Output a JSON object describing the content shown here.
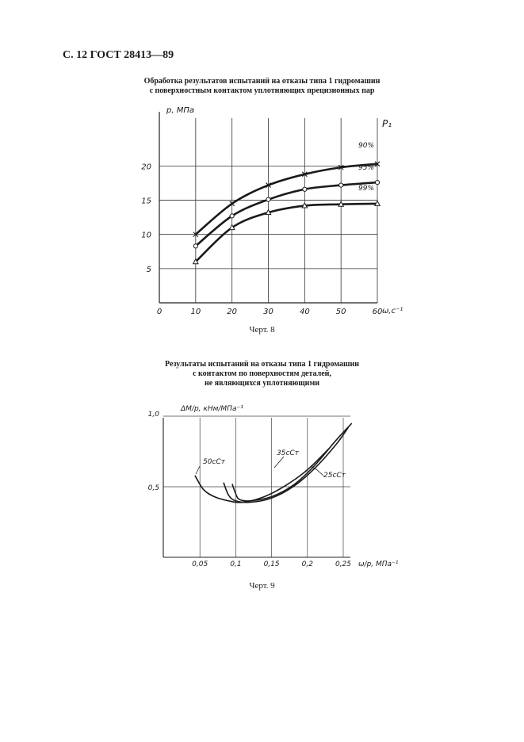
{
  "page": {
    "header": "С. 12 ГОСТ 28413—89"
  },
  "figures": [
    {
      "title_lines": [
        "Обработка результатов испытаний на отказы типа 1 гидромашин",
        "с поверхностным контактом уплотняющих прецизионных пар"
      ],
      "caption": "Черт. 8"
    },
    {
      "title_lines": [
        "Результаты испытаний на отказы типа 1 гидромашин",
        "с контактом по поверхностям деталей,",
        "не являющихся уплотняющими"
      ],
      "caption": "Черт. 9"
    }
  ],
  "chart_data": [
    {
      "type": "line",
      "ylabel": "p, МПа",
      "xlabel": "ω,с⁻¹",
      "legend_title": "P₁",
      "x_ticks": [
        "0",
        "10",
        "20",
        "30",
        "40",
        "50",
        "60"
      ],
      "y_ticks": [
        "5",
        "10",
        "15",
        "20"
      ],
      "xlim": [
        0,
        60
      ],
      "ylim": [
        0,
        27
      ],
      "grid": true,
      "series": [
        {
          "name": "90%",
          "marker": "x",
          "x": [
            10,
            20,
            30,
            40,
            50,
            60
          ],
          "y": [
            10.0,
            14.5,
            17.2,
            18.8,
            19.8,
            20.3
          ]
        },
        {
          "name": "95%",
          "marker": "o",
          "x": [
            10,
            20,
            30,
            40,
            50,
            60
          ],
          "y": [
            8.3,
            12.7,
            15.1,
            16.6,
            17.2,
            17.6
          ]
        },
        {
          "name": "99%",
          "marker": "triangle",
          "x": [
            10,
            20,
            30,
            40,
            50,
            60
          ],
          "y": [
            6.0,
            11.0,
            13.2,
            14.2,
            14.4,
            14.5
          ]
        }
      ]
    },
    {
      "type": "line",
      "ylabel": "ΔM/p, кНм/МПа⁻¹",
      "xlabel": "ω/p, МПа⁻¹",
      "x_ticks": [
        "0,05",
        "0,1",
        "0,15",
        "0,2",
        "0,25"
      ],
      "y_ticks": [
        "0,5",
        "1,0"
      ],
      "xlim": [
        0,
        0.25
      ],
      "ylim": [
        0,
        1.0
      ],
      "grid": true,
      "series": [
        {
          "name": "50сСт",
          "x": [
            0.043,
            0.055,
            0.07,
            0.09,
            0.11,
            0.14,
            0.17,
            0.2,
            0.23
          ],
          "y": [
            0.58,
            0.48,
            0.43,
            0.4,
            0.39,
            0.43,
            0.51,
            0.62,
            0.77
          ]
        },
        {
          "name": "35сСт",
          "x": [
            0.083,
            0.09,
            0.1,
            0.12,
            0.15,
            0.18,
            0.21,
            0.24,
            0.257
          ],
          "y": [
            0.53,
            0.44,
            0.4,
            0.39,
            0.42,
            0.5,
            0.63,
            0.8,
            0.92
          ]
        },
        {
          "name": "25сСт",
          "x": [
            0.095,
            0.1,
            0.105,
            0.12,
            0.15,
            0.18,
            0.21,
            0.24,
            0.262
          ],
          "y": [
            0.52,
            0.45,
            0.41,
            0.4,
            0.43,
            0.51,
            0.65,
            0.83,
            0.95
          ]
        }
      ]
    }
  ]
}
